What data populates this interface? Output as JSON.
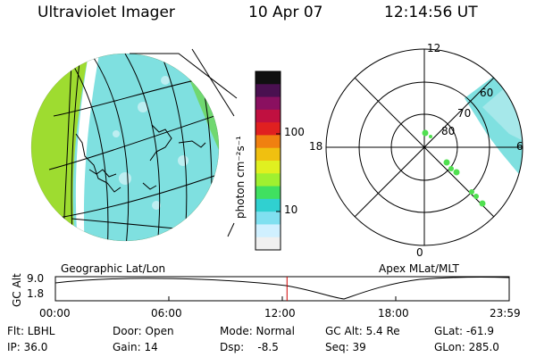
{
  "header": {
    "title": "Ultraviolet Imager",
    "date": "10 Apr 07",
    "time": "12:14:56 UT"
  },
  "colorbar": {
    "unit_label": "photon cm⁻²s⁻¹",
    "ticks": [
      "100",
      "10"
    ],
    "colors": [
      "#101010",
      "#4a1050",
      "#8a1060",
      "#c01040",
      "#e02020",
      "#f08010",
      "#f0c010",
      "#e0f020",
      "#a0f030",
      "#40e060",
      "#30d0d0",
      "#80e0f0",
      "#d0f0ff",
      "#f0f0f0"
    ]
  },
  "left_map": {
    "caption": "Geographic Lat/Lon"
  },
  "polar_map": {
    "caption": "Apex MLat/MLT",
    "mlt_labels": {
      "top": "12",
      "left": "18",
      "right": "6",
      "bottom": "0"
    },
    "lat_labels": [
      "80",
      "70",
      "60"
    ]
  },
  "altitude_plot": {
    "y_label": "GC Alt",
    "y_ticks": [
      "9.0",
      "1.8"
    ],
    "x_ticks": [
      "00:00",
      "06:00",
      "12:00",
      "18:00",
      "23:59"
    ],
    "current_marker_hour": 12.25
  },
  "status": {
    "row1": {
      "flt": "Flt: LBHL",
      "door": "Door: Open",
      "mode": "Mode: Normal",
      "gc_alt": "GC Alt: 5.4 Re",
      "glat": "GLat: -61.9"
    },
    "row2": {
      "ip": "IP: 36.0",
      "gain": "Gain: 14",
      "dsp": "Dsp:    -8.5",
      "seq": "Seq: 39",
      "glon": "GLon: 285.0"
    }
  }
}
